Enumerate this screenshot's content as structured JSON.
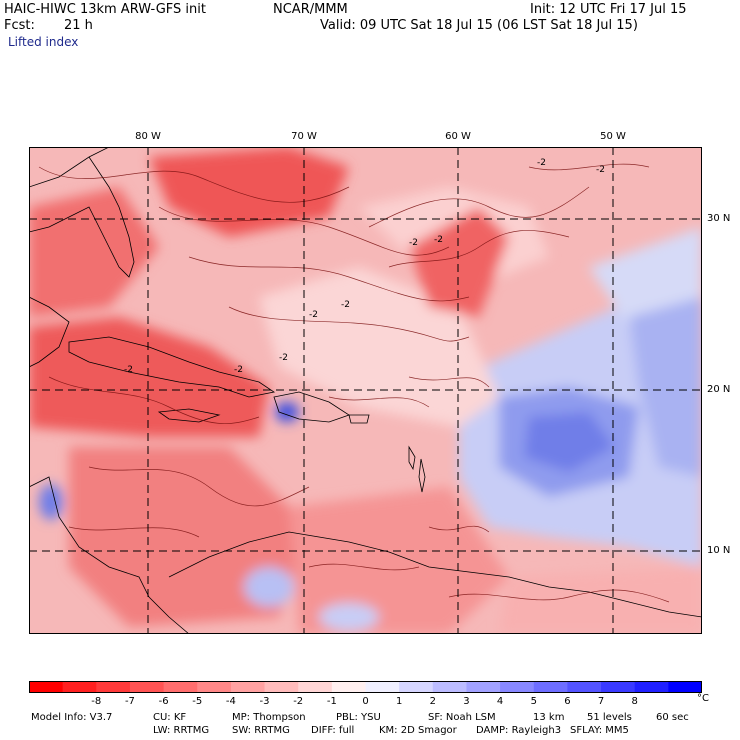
{
  "header": {
    "model": "HAIC-HIWC 13km ARW-GFS init",
    "org": "NCAR/MMM",
    "init": "Init: 12 UTC Fri 17 Jul 15",
    "fcst_label": "Fcst:",
    "fcst_value": "21 h",
    "valid": "Valid: 09 UTC Sat 18 Jul 15 (06 LST Sat 18 Jul 15)",
    "field": "Lifted index"
  },
  "map": {
    "lon_labels": [
      "80 W",
      "70 W",
      "60 W",
      "50 W"
    ],
    "lat_labels": [
      "30 N",
      "20 N",
      "10 N"
    ],
    "contour_labels": [
      "-2",
      "-2",
      "-2",
      "-2",
      "-2",
      "-2",
      "-2",
      "-2",
      "-2"
    ],
    "colors": {
      "strong_unstable": "#f04a4a",
      "unstable": "#f59a9a",
      "neutral": "#fde0e0",
      "stable": "#9aa6f2",
      "strong_stable": "#6b7be8"
    }
  },
  "legend": {
    "ticks": [
      "-8",
      "-7",
      "-6",
      "-5",
      "-4",
      "-3",
      "-2",
      "-1",
      "0",
      "1",
      "2",
      "3",
      "4",
      "5",
      "6",
      "7",
      "8"
    ],
    "unit": "°C",
    "colors": [
      "#ff0000",
      "#ff2020",
      "#ff3a3a",
      "#ff5454",
      "#ff6e6e",
      "#ff8888",
      "#ffa2a2",
      "#ffbcbc",
      "#ffd6d6",
      "#fff0f0",
      "#f0f0ff",
      "#d6d6ff",
      "#bcbcff",
      "#a2a2ff",
      "#8888ff",
      "#6e6eff",
      "#5454ff",
      "#3a3aff",
      "#2020ff",
      "#0000ff"
    ]
  },
  "footer": {
    "model_info": "Model Info: V3.7",
    "cu": "CU: KF",
    "mp": "MP: Thompson",
    "pbl": "PBL: YSU",
    "sf": "SF: Noah LSM",
    "res": "13 km",
    "levels": "51 levels",
    "dt": "60 sec",
    "lw": "LW: RRTMG",
    "sw": "SW: RRTMG",
    "diff": "DIFF: full",
    "km": "KM: 2D Smagor",
    "damp": "DAMP: Rayleigh3",
    "sflay": "SFLAY: MM5"
  }
}
